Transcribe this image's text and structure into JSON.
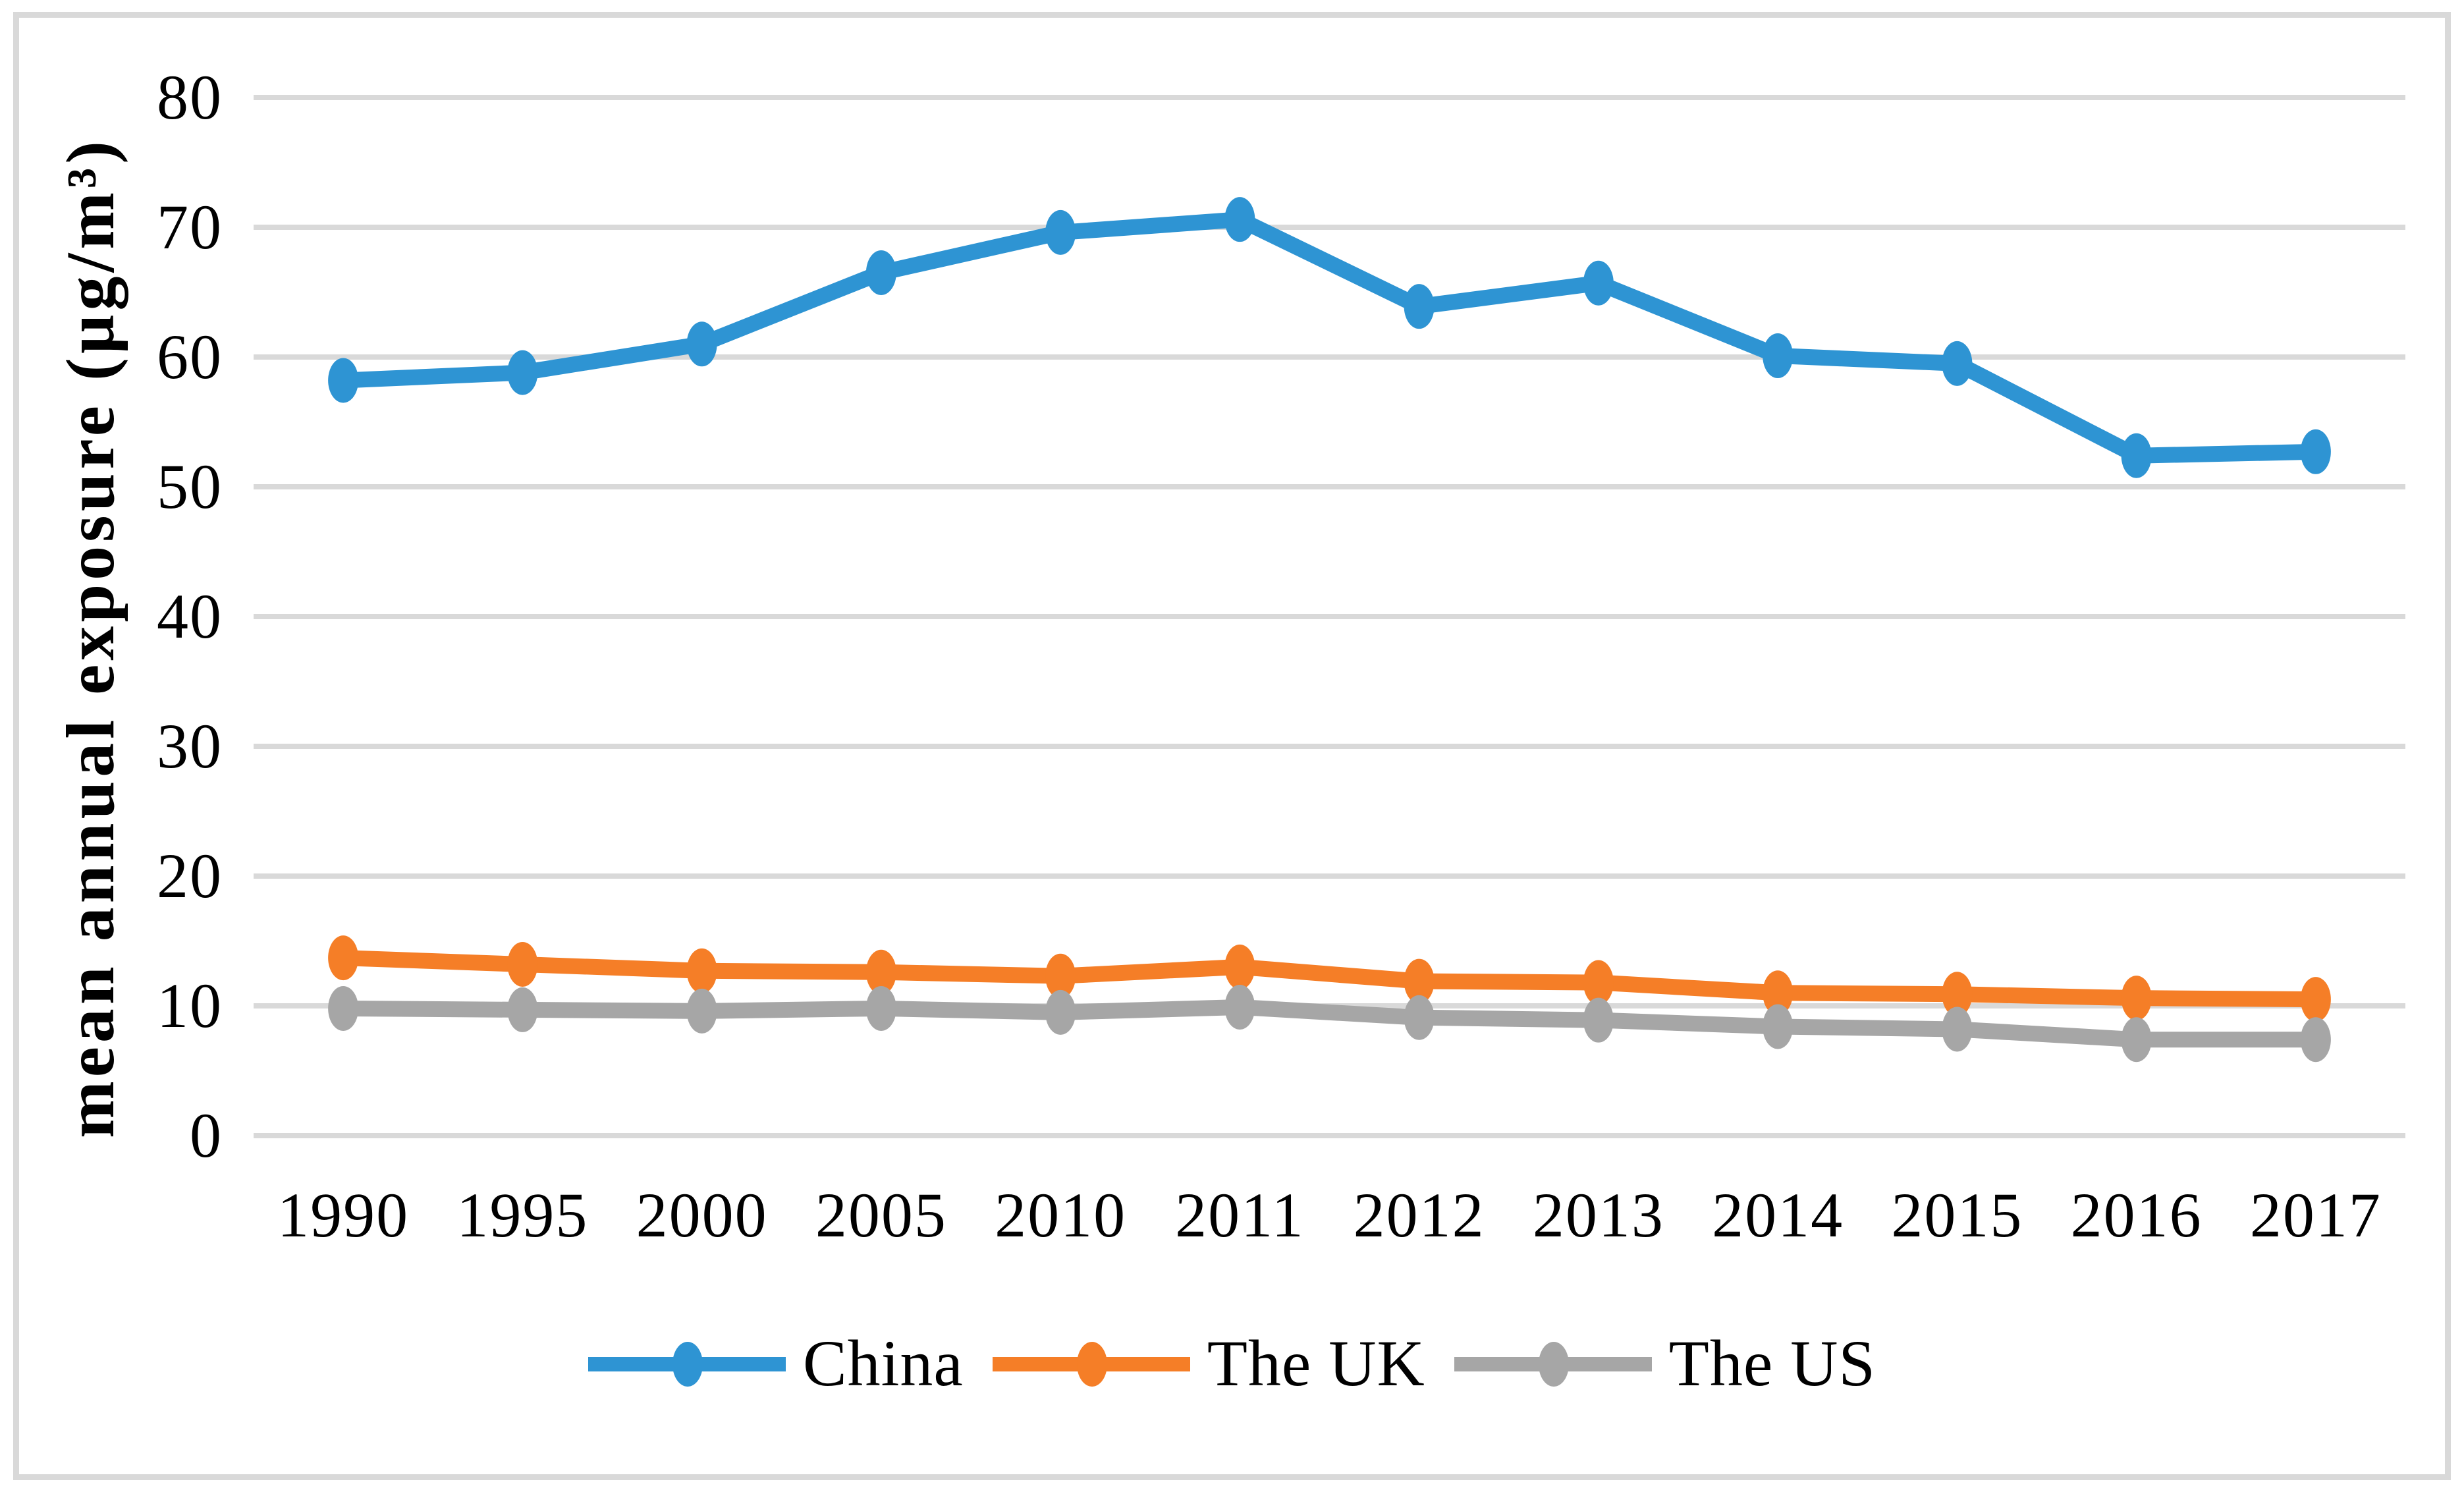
{
  "chart_data": {
    "type": "line",
    "ylabel": "mean annual exposure (µg/m³)",
    "categories": [
      "1990",
      "1995",
      "2000",
      "2005",
      "2010",
      "2011",
      "2012",
      "2013",
      "2014",
      "2015",
      "2016",
      "2017"
    ],
    "series": [
      {
        "name": "China",
        "color": "#2E94D3",
        "values": [
          58.2,
          58.8,
          61.0,
          66.5,
          69.6,
          70.6,
          63.9,
          65.7,
          60.1,
          59.5,
          52.4,
          52.7
        ]
      },
      {
        "name": "The UK",
        "color": "#F57E27",
        "values": [
          13.7,
          13.2,
          12.7,
          12.6,
          12.3,
          13.0,
          11.9,
          11.8,
          11.0,
          10.9,
          10.6,
          10.5
        ]
      },
      {
        "name": "The US",
        "color": "#A6A6A6",
        "values": [
          9.8,
          9.7,
          9.6,
          9.8,
          9.5,
          9.9,
          9.1,
          8.9,
          8.4,
          8.2,
          7.4,
          7.4
        ]
      }
    ],
    "ylim": [
      0,
      80
    ],
    "yticks": [
      0,
      10,
      20,
      30,
      40,
      50,
      60,
      70,
      80
    ],
    "grid": true,
    "gridline_color": "#D9D9D9",
    "frame_color": "#D9D9D9",
    "background": "#FFFFFF",
    "legend_position": "bottom"
  }
}
